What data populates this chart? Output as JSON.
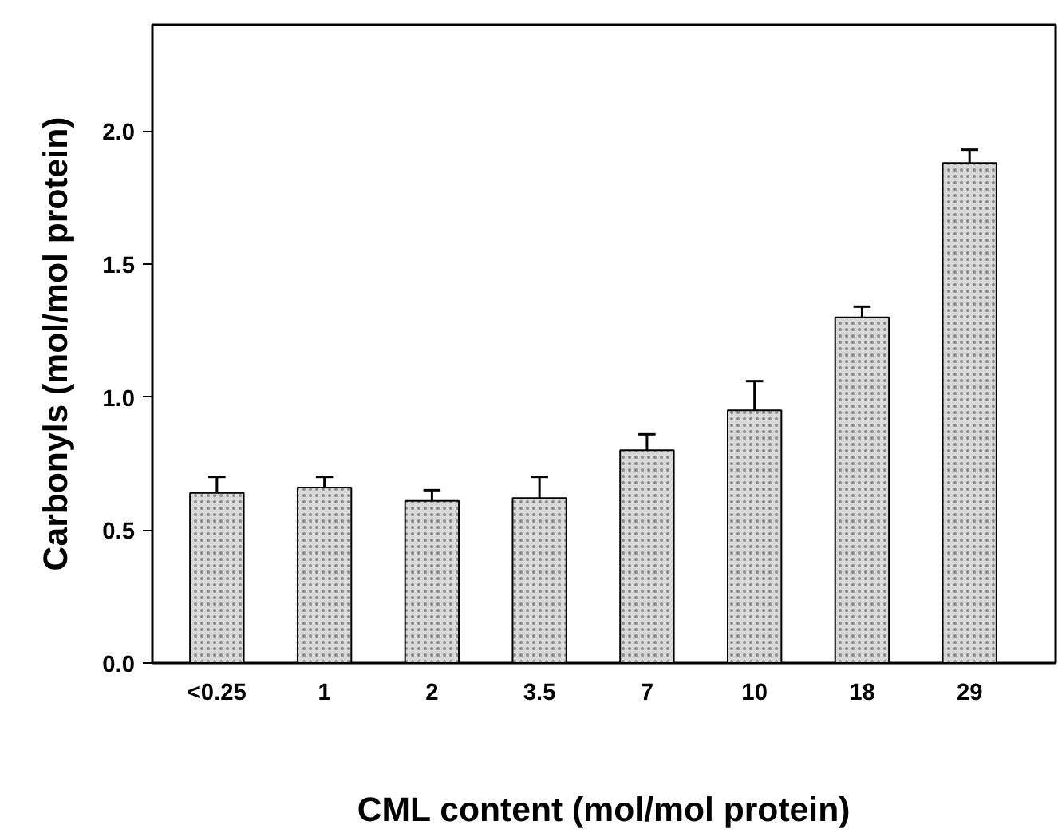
{
  "chart_data": {
    "type": "bar",
    "xlabel": "CML content (mol/mol protein)",
    "ylabel": "Carbonyls (mol/mol protein)",
    "categories": [
      "<0.25",
      "1",
      "2",
      "3.5",
      "7",
      "10",
      "18",
      "29"
    ],
    "values": [
      0.64,
      0.66,
      0.61,
      0.62,
      0.8,
      0.95,
      1.3,
      1.88
    ],
    "errors": [
      [
        0.64,
        0.7
      ],
      [
        0.66,
        0.7
      ],
      [
        0.61,
        0.65
      ],
      [
        0.62,
        0.7
      ],
      [
        0.8,
        0.86
      ],
      [
        0.95,
        1.06
      ],
      [
        1.3,
        1.34
      ],
      [
        1.88,
        1.93
      ]
    ],
    "color": "#d9d9d9",
    "ylim": [
      0,
      2.4
    ],
    "yticks": [
      {
        "value": 0,
        "label": "0.0"
      },
      {
        "value": 0.5,
        "label": "0.5"
      },
      {
        "value": 1,
        "label": "1.0"
      },
      {
        "value": 1.5,
        "label": "1.5"
      },
      {
        "value": 2,
        "label": "2.0"
      }
    ],
    "grid": false
  }
}
